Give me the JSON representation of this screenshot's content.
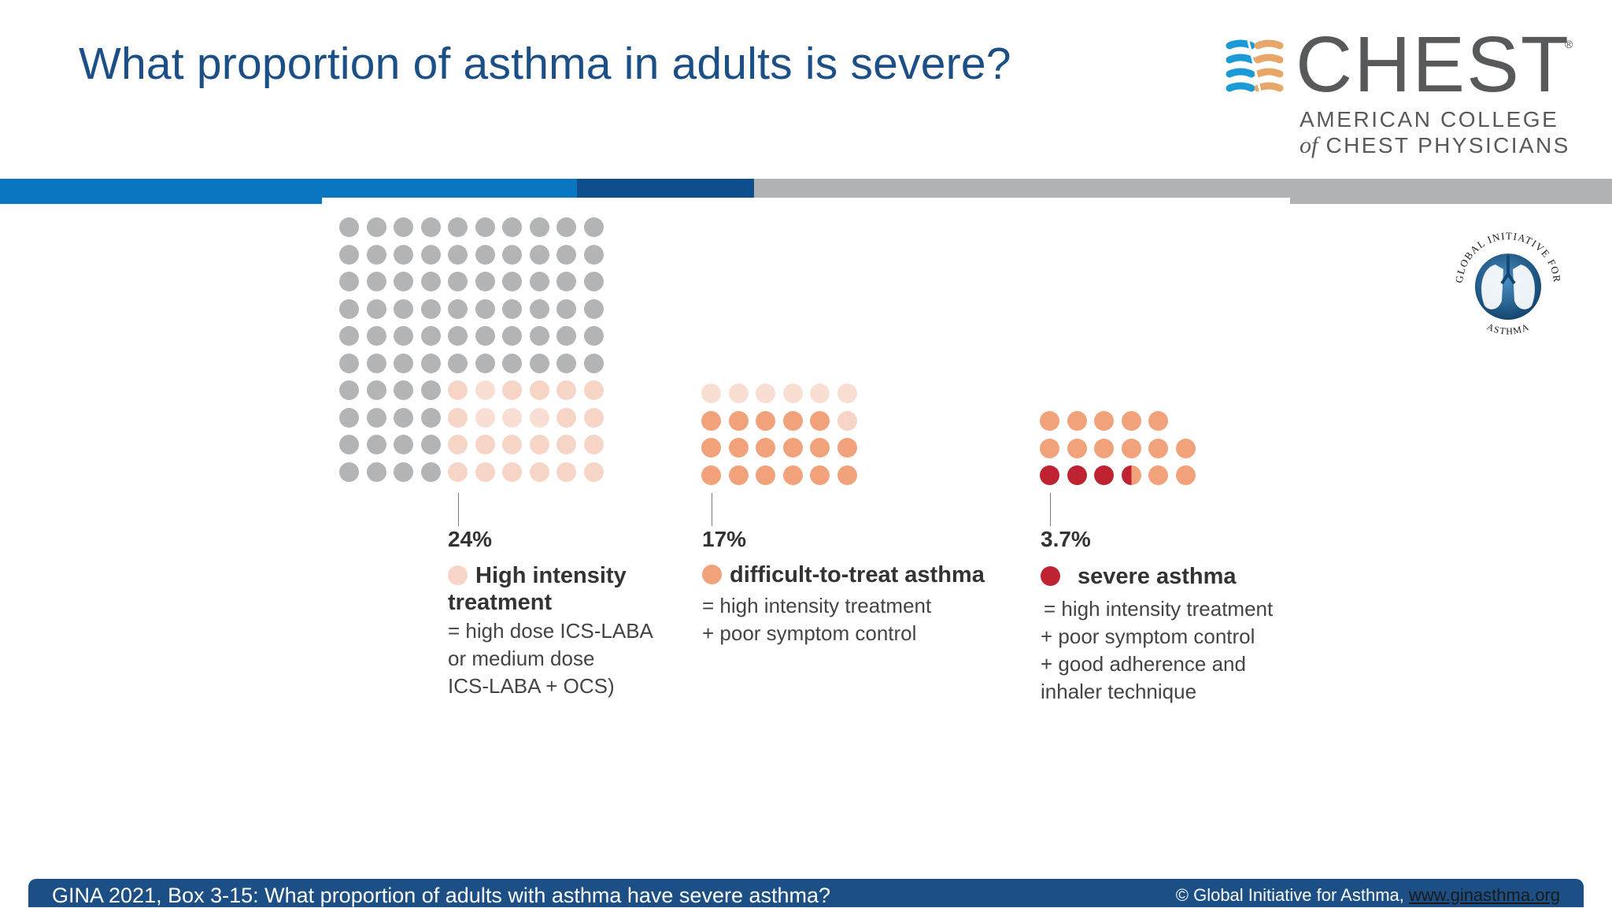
{
  "slide": {
    "title": "What proportion of asthma in adults is severe?"
  },
  "logos": {
    "chest": {
      "wordmark": "CHEST",
      "registered": "®",
      "line1": "AMERICAN COLLEGE",
      "line2_of": "of",
      "line2_rest": "CHEST PHYSICIANS"
    },
    "gina": {
      "top_arc": "GLOBAL INITIATIVE FOR",
      "bottom_arc": "ASTHMA"
    }
  },
  "colors": {
    "title": "#1b4f86",
    "gray_dot": "#b3b4b6",
    "light_dot": "#f7d5c6",
    "peach_dot": "#f2a27b",
    "red_dot": "#bf2231",
    "band_blue": "#0a76c1",
    "band_dark": "#0d4f8d",
    "band_gray": "#b0b3b6",
    "footer": "#1b4f86"
  },
  "groups": [
    {
      "percent": "24%",
      "title": "High intensity treatment",
      "title_line1": "High intensity",
      "title_line2": "treatment",
      "legend_color": "light",
      "lines": [
        "= high dose ICS-LABA",
        "or medium dose",
        "ICS-LABA + OCS)"
      ]
    },
    {
      "percent": "17%",
      "title": "difficult-to-treat asthma",
      "legend_color": "peach",
      "lines": [
        "= high intensity treatment",
        "+ poor symptom control"
      ]
    },
    {
      "percent": "3.7%",
      "title": "severe asthma",
      "legend_color": "red",
      "lines": [
        "= high intensity treatment",
        "+ poor symptom control",
        "+ good adherence and",
        "inhaler technique"
      ]
    }
  ],
  "footer": {
    "caption": "GINA 2021, Box 3-15: What proportion of adults with asthma have severe asthma?",
    "credit": "© Global Initiative for Asthma,",
    "link": "www.ginasthma.org"
  }
}
